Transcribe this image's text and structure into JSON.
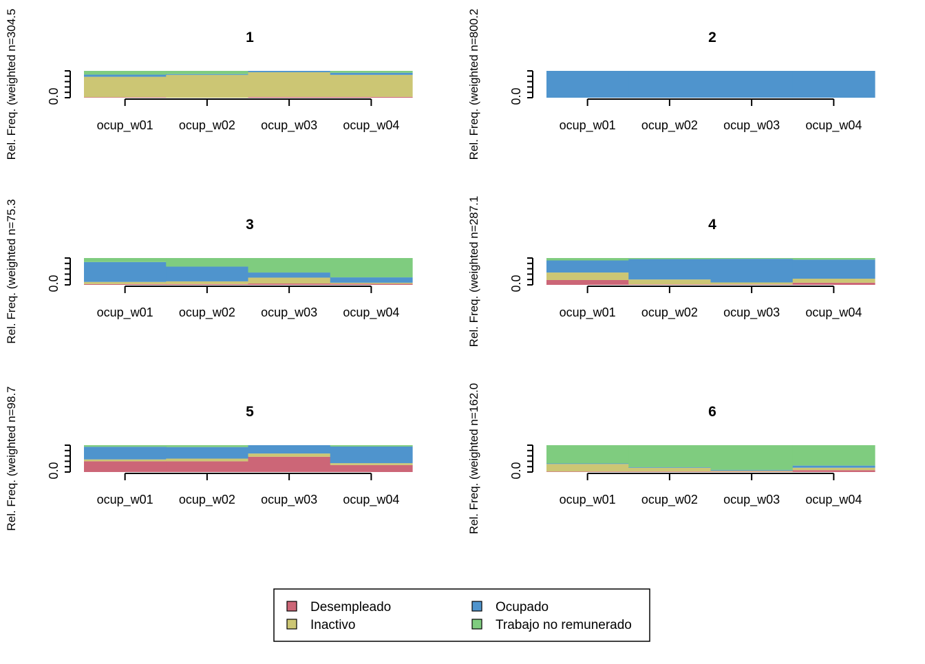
{
  "colors": {
    "Desempleado": "#CC6677",
    "Inactivo": "#CCC674",
    "Ocupado": "#4F94CD",
    "Trabajo no remunerado": "#7FCC7F"
  },
  "legend": {
    "items": [
      "Desempleado",
      "Inactivo",
      "Ocupado",
      "Trabajo no remunerado"
    ]
  },
  "chart_data": [
    {
      "type": "area",
      "title": "1",
      "ylabel": "Rel. Freq. (weighted n=304.5",
      "categories": [
        "ocup_w01",
        "ocup_w02",
        "ocup_w03",
        "ocup_w04"
      ],
      "ytick_label": "0.0",
      "ylim": [
        0,
        1
      ],
      "series": [
        {
          "name": "Desempleado",
          "values": [
            0.02,
            0.0,
            0.03,
            0.03
          ]
        },
        {
          "name": "Inactivo",
          "values": [
            0.76,
            0.85,
            0.92,
            0.82
          ]
        },
        {
          "name": "Ocupado",
          "values": [
            0.08,
            0.03,
            0.05,
            0.08
          ]
        },
        {
          "name": "Trabajo no remunerado",
          "values": [
            0.14,
            0.12,
            0.0,
            0.07
          ]
        }
      ]
    },
    {
      "type": "area",
      "title": "2",
      "ylabel": "Rel. Freq. (weighted n=800.2",
      "categories": [
        "ocup_w01",
        "ocup_w02",
        "ocup_w03",
        "ocup_w04"
      ],
      "ytick_label": "0.0",
      "ylim": [
        0,
        1
      ],
      "series": [
        {
          "name": "Desempleado",
          "values": [
            0.0,
            0.0,
            0.0,
            0.0
          ]
        },
        {
          "name": "Inactivo",
          "values": [
            0.0,
            0.0,
            0.0,
            0.0
          ]
        },
        {
          "name": "Ocupado",
          "values": [
            1.0,
            1.0,
            1.0,
            1.0
          ]
        },
        {
          "name": "Trabajo no remunerado",
          "values": [
            0.0,
            0.0,
            0.0,
            0.0
          ]
        }
      ]
    },
    {
      "type": "area",
      "title": "3",
      "ylabel": "Rel. Freq. (weighted n=75.3",
      "categories": [
        "ocup_w01",
        "ocup_w02",
        "ocup_w03",
        "ocup_w04"
      ],
      "ytick_label": "0.0",
      "ylim": [
        0,
        1
      ],
      "series": [
        {
          "name": "Desempleado",
          "values": [
            0.03,
            0.03,
            0.05,
            0.04
          ]
        },
        {
          "name": "Inactivo",
          "values": [
            0.08,
            0.1,
            0.22,
            0.04
          ]
        },
        {
          "name": "Ocupado",
          "values": [
            0.74,
            0.55,
            0.19,
            0.2
          ]
        },
        {
          "name": "Trabajo no remunerado",
          "values": [
            0.15,
            0.32,
            0.54,
            0.72
          ]
        }
      ]
    },
    {
      "type": "area",
      "title": "4",
      "ylabel": "Rel. Freq. (weighted n=287.1",
      "categories": [
        "ocup_w01",
        "ocup_w02",
        "ocup_w03",
        "ocup_w04"
      ],
      "ytick_label": "0.0",
      "ylim": [
        0,
        1
      ],
      "series": [
        {
          "name": "Desempleado",
          "values": [
            0.18,
            0.02,
            0.02,
            0.08
          ]
        },
        {
          "name": "Inactivo",
          "values": [
            0.28,
            0.18,
            0.07,
            0.15
          ]
        },
        {
          "name": "Ocupado",
          "values": [
            0.45,
            0.76,
            0.88,
            0.71
          ]
        },
        {
          "name": "Trabajo no remunerado",
          "values": [
            0.09,
            0.04,
            0.03,
            0.06
          ]
        }
      ]
    },
    {
      "type": "area",
      "title": "5",
      "ylabel": "Rel. Freq. (weighted n=98.7",
      "categories": [
        "ocup_w01",
        "ocup_w02",
        "ocup_w03",
        "ocup_w04"
      ],
      "ytick_label": "0.0",
      "ylim": [
        0,
        1
      ],
      "series": [
        {
          "name": "Desempleado",
          "values": [
            0.4,
            0.4,
            0.57,
            0.26
          ]
        },
        {
          "name": "Inactivo",
          "values": [
            0.07,
            0.1,
            0.12,
            0.07
          ]
        },
        {
          "name": "Ocupado",
          "values": [
            0.47,
            0.43,
            0.31,
            0.62
          ]
        },
        {
          "name": "Trabajo no remunerado",
          "values": [
            0.06,
            0.07,
            0.0,
            0.05
          ]
        }
      ]
    },
    {
      "type": "area",
      "title": "6",
      "ylabel": "Rel. Freq. (weighted n=162.0",
      "categories": [
        "ocup_w01",
        "ocup_w02",
        "ocup_w03",
        "ocup_w04"
      ],
      "ytick_label": "0.0",
      "ylim": [
        0,
        1
      ],
      "series": [
        {
          "name": "Desempleado",
          "values": [
            0.02,
            0.02,
            0.02,
            0.07
          ]
        },
        {
          "name": "Inactivo",
          "values": [
            0.28,
            0.14,
            0.03,
            0.09
          ]
        },
        {
          "name": "Ocupado",
          "values": [
            0.02,
            0.02,
            0.03,
            0.08
          ]
        },
        {
          "name": "Trabajo no remunerado",
          "values": [
            0.68,
            0.82,
            0.92,
            0.76
          ]
        }
      ]
    }
  ]
}
